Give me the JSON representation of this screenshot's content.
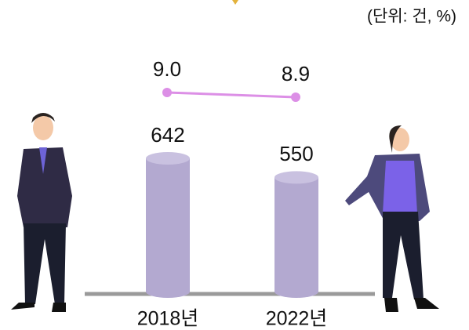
{
  "chart_data": {
    "type": "combo",
    "unit_note": "(단위: 건, %)",
    "categories": [
      "2018년",
      "2022년"
    ],
    "bars": {
      "values": [
        642,
        550
      ],
      "color": "#b3a9d0"
    },
    "line": {
      "values": [
        9.0,
        8.9
      ],
      "value_labels": [
        "9.0",
        "8.9"
      ],
      "color": "#dc8fe6"
    }
  }
}
